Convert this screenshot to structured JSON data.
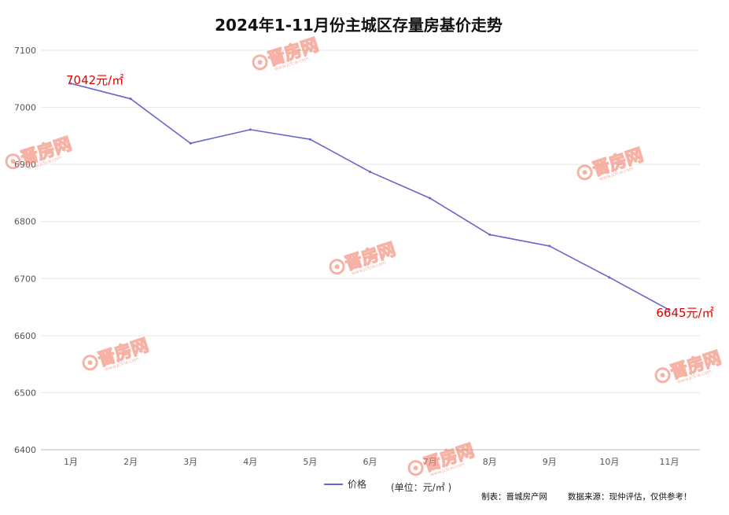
{
  "watermark": {
    "text": "晋房网",
    "sub": "www.jcfcw.com",
    "color": "#f08a76"
  },
  "legend": {
    "label": "价格"
  },
  "unit_note": "(单位：元/㎡ )",
  "footer": {
    "maker": "制表：晋城房产网",
    "source": "数据来源：现仲评估，仅供参考！"
  },
  "data_labels": [
    {
      "index": 0,
      "text": "7042元/㎡",
      "anchor": "start"
    },
    {
      "index": 10,
      "text": "6645元/㎡",
      "anchor": "middle"
    }
  ],
  "chart_data": {
    "type": "line",
    "title": "2024年1-11月份主城区存量房基价走势",
    "categories": [
      "1月",
      "2月",
      "3月",
      "4月",
      "5月",
      "6月",
      "7月",
      "8月",
      "9月",
      "10月",
      "11月"
    ],
    "series": [
      {
        "name": "价格",
        "values": [
          7042,
          7015,
          6937,
          6961,
          6944,
          6887,
          6841,
          6777,
          6757,
          6702,
          6645
        ],
        "color": "#6666cc"
      }
    ],
    "ylim": [
      6400,
      7100
    ],
    "yticks": [
      6400,
      6500,
      6600,
      6700,
      6800,
      6900,
      7000,
      7100
    ],
    "grid": true,
    "legend_position": "bottom",
    "label_color": "#e00000"
  }
}
